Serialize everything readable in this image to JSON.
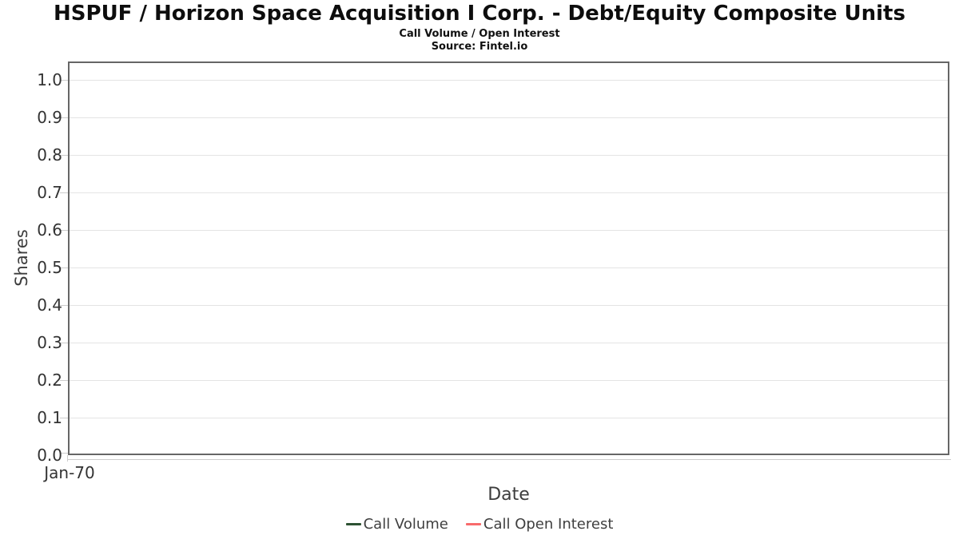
{
  "header": {
    "title": "HSPUF / Horizon Space Acquisition I Corp. - Debt/Equity Composite Units",
    "subtitle": "Call Volume / Open Interest",
    "source": "Source: Fintel.io"
  },
  "chart_data": {
    "type": "line",
    "title": "HSPUF / Horizon Space Acquisition I Corp. - Debt/Equity Composite Units",
    "subtitle": "Call Volume / Open Interest",
    "source": "Source: Fintel.io",
    "xlabel": "Date",
    "ylabel": "Shares",
    "ylim": [
      0.0,
      1.05
    ],
    "y_ticks": [
      "0.0",
      "0.1",
      "0.2",
      "0.3",
      "0.4",
      "0.5",
      "0.6",
      "0.7",
      "0.8",
      "0.9",
      "1.0"
    ],
    "x_ticks": [
      "Jan-70"
    ],
    "grid": "horizontal-only",
    "legend_position": "bottom",
    "series": [
      {
        "name": "Call Volume",
        "color": "#2d5233",
        "x": [],
        "values": []
      },
      {
        "name": "Call Open Interest",
        "color": "#f86b6c",
        "x": [],
        "values": []
      }
    ]
  },
  "colors": {
    "background": "#ffffff",
    "plot_border": "#666666",
    "gridline": "#e4e4e4",
    "tick_mark": "#cccccc",
    "axis_line": "#cccccc",
    "title_text": "#0d0d0d",
    "tick_label_text": "#333333",
    "axis_title_text": "#3d3d3d",
    "legend_text": "#3f3f3f"
  }
}
